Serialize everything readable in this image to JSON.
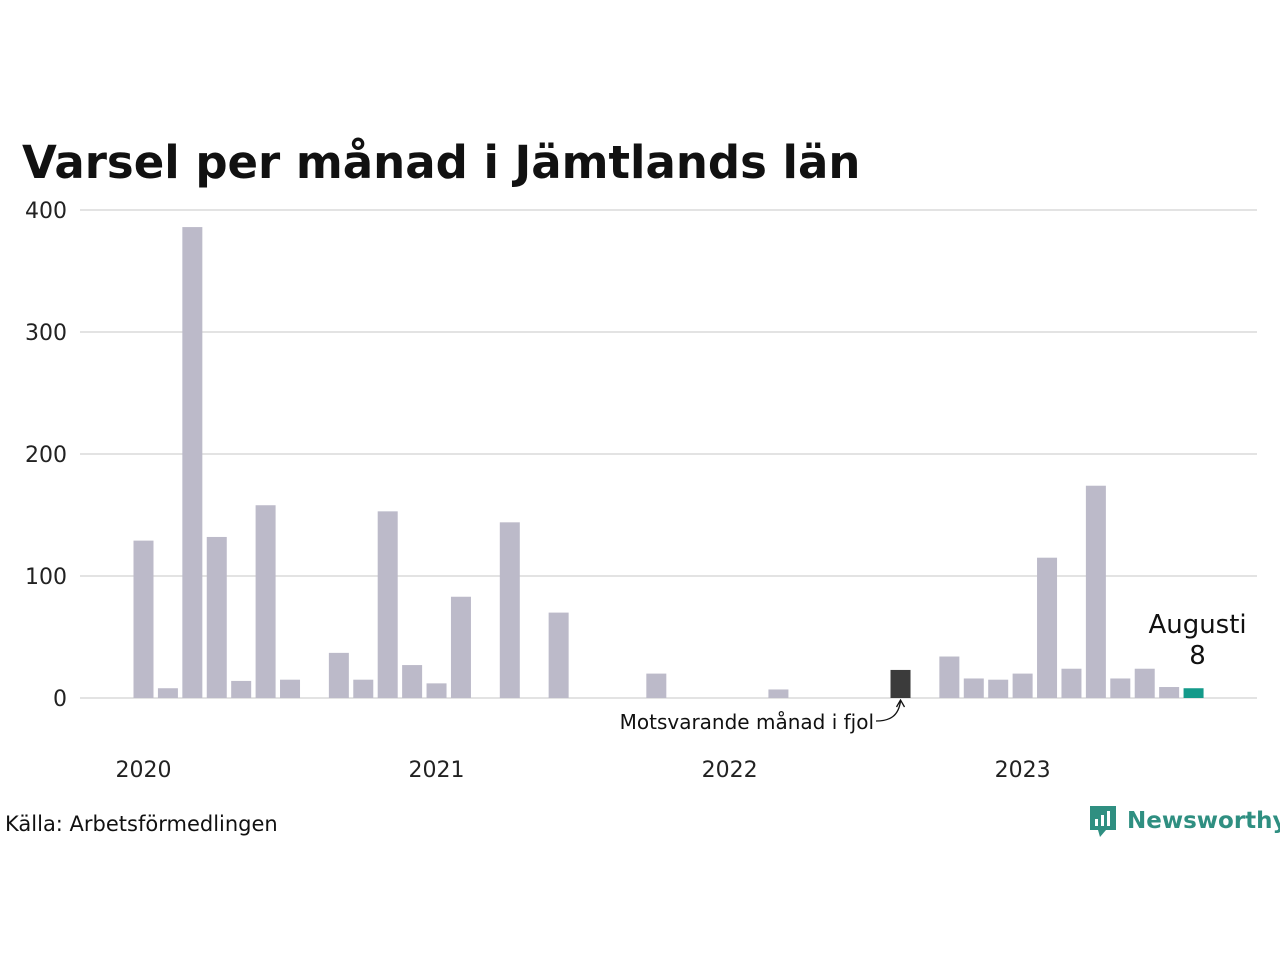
{
  "chart_data": {
    "type": "bar",
    "title": "Varsel per månad i Jämtlands län",
    "x": [
      "2020-01",
      "2020-02",
      "2020-03",
      "2020-04",
      "2020-05",
      "2020-06",
      "2020-07",
      "2020-08",
      "2020-09",
      "2020-10",
      "2020-11",
      "2020-12",
      "2021-01",
      "2021-02",
      "2021-03",
      "2021-04",
      "2021-05",
      "2021-06",
      "2021-07",
      "2021-08",
      "2021-09",
      "2021-10",
      "2021-11",
      "2021-12",
      "2022-01",
      "2022-02",
      "2022-03",
      "2022-04",
      "2022-05",
      "2022-06",
      "2022-07",
      "2022-08",
      "2022-09",
      "2022-10",
      "2022-11",
      "2022-12",
      "2023-01",
      "2023-02",
      "2023-03",
      "2023-04",
      "2023-05",
      "2023-06",
      "2023-07",
      "2023-08"
    ],
    "values": [
      129,
      8,
      386,
      132,
      14,
      158,
      15,
      0,
      37,
      15,
      153,
      27,
      12,
      83,
      0,
      144,
      0,
      70,
      0,
      0,
      0,
      20,
      0,
      0,
      0,
      0,
      7,
      0,
      0,
      0,
      0,
      23,
      0,
      34,
      16,
      15,
      20,
      115,
      24,
      174,
      16,
      24,
      9,
      8
    ],
    "year_ticks": [
      {
        "label": "2020",
        "x": "2020-01"
      },
      {
        "label": "2021",
        "x": "2021-01"
      },
      {
        "label": "2022",
        "x": "2022-01"
      },
      {
        "label": "2023",
        "x": "2023-01"
      }
    ],
    "y_ticks": [
      0,
      100,
      200,
      300,
      400
    ],
    "ylim": [
      0,
      400
    ],
    "grid": true,
    "colors": {
      "default": "#bcbac9",
      "previous_year": "#3b3b3b",
      "current": "#149a8a",
      "grid": "#e3e3e3"
    },
    "previous_year_index": 31,
    "current_index": 43,
    "annotation_previous": "Motsvarande månad i fjol",
    "highlight_month": "Augusti",
    "highlight_value": "8"
  },
  "footer": {
    "source": "Källa: Arbetsförmedlingen",
    "brand": "Newsworthy",
    "logo_icon": "newsworthy-logo-icon"
  }
}
